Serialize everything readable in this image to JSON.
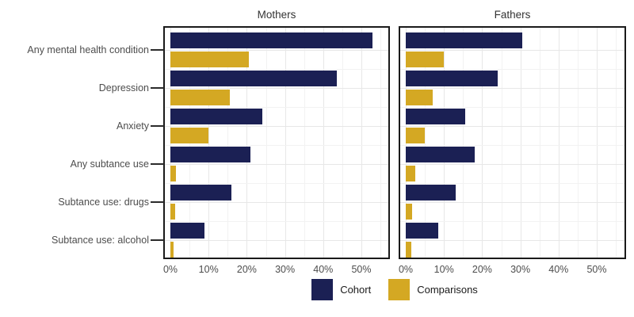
{
  "chart_data": {
    "type": "bar",
    "orientation": "horizontal",
    "title": "",
    "categories": [
      "Any mental health condition",
      "Depression",
      "Anxiety",
      "Any subtance use",
      "Subtance use: drugs",
      "Subtance use: alcohol"
    ],
    "x_tick_labels": [
      "0%",
      "10%",
      "20%",
      "30%",
      "40%",
      "50%"
    ],
    "x_tick_values": [
      0,
      10,
      20,
      30,
      40,
      50
    ],
    "xlim": [
      0,
      57
    ],
    "grid": true,
    "legend_position": "bottom",
    "panels": [
      {
        "title": "Mothers",
        "series": [
          {
            "name": "Cohort",
            "values": [
              53,
              43.5,
              24,
              21,
              16,
              9
            ]
          },
          {
            "name": "Comparisons",
            "values": [
              20.5,
              15.5,
              10,
              1.5,
              1.2,
              0.8
            ]
          }
        ]
      },
      {
        "title": "Fathers",
        "series": [
          {
            "name": "Cohort",
            "values": [
              30.5,
              24,
              15.5,
              18,
              13,
              8.5
            ]
          },
          {
            "name": "Comparisons",
            "values": [
              10,
              7,
              5,
              2.5,
              1.6,
              1.4
            ]
          }
        ]
      }
    ],
    "legend": [
      {
        "label": "Cohort",
        "color": "#1b2054"
      },
      {
        "label": "Comparisons",
        "color": "#d4a823"
      }
    ]
  }
}
